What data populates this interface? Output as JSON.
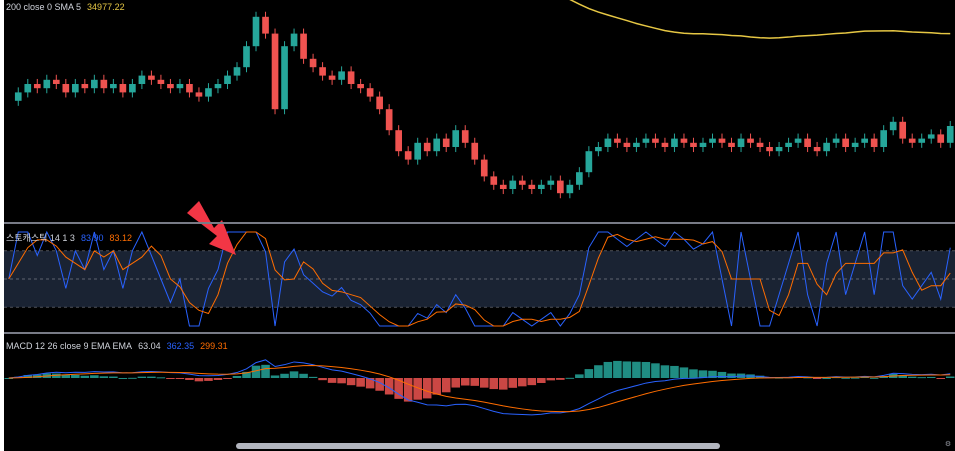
{
  "price_pane": {
    "legend": {
      "label": "200 close 0 SMA 5",
      "value": "34977.22"
    },
    "colors": {
      "up": "#26a69a",
      "down": "#ef5350",
      "sma": "#e6c744"
    }
  },
  "stoch_pane": {
    "legend": {
      "label": "스토캐스틱 14 1 3",
      "k": "83.90",
      "d": "83.12"
    },
    "colors": {
      "k": "#2962ff",
      "d": "#ff6d00",
      "band": "#1a2333"
    }
  },
  "macd_pane": {
    "legend": {
      "label": "MACD 12 26 close 9 EMA EMA",
      "hist": "63.04",
      "macd": "362.35",
      "signal": "299.31"
    },
    "colors": {
      "macd": "#2962ff",
      "signal": "#ff6d00",
      "hist_up": "#26a69a",
      "hist_down": "#ef5350"
    }
  },
  "annotation": {
    "type": "arrow",
    "color": "#f23645"
  },
  "icons": {
    "corner": "settings-icon"
  },
  "chart_data": {
    "type": "candlestick",
    "n_bars": 100,
    "series": [
      {
        "name": "close",
        "values": [
          42,
          44,
          46,
          45,
          47,
          46,
          44,
          46,
          45,
          47,
          45,
          46,
          44,
          46,
          48,
          47,
          46,
          45,
          46,
          44,
          43,
          45,
          46,
          48,
          50,
          55,
          62,
          58,
          40,
          55,
          58,
          52,
          50,
          48,
          47,
          49,
          46,
          45,
          43,
          40,
          35,
          30,
          28,
          32,
          30,
          33,
          31,
          35,
          32,
          28,
          24,
          22,
          21,
          23,
          22,
          21,
          22,
          23,
          20,
          22,
          25,
          30,
          31,
          33,
          32,
          31,
          32,
          33,
          32,
          31,
          33,
          32,
          31,
          32,
          33,
          32,
          31,
          33,
          32,
          31,
          30,
          31,
          32,
          33,
          31,
          30,
          32,
          33,
          31,
          32,
          33,
          31,
          35,
          37,
          33,
          32,
          33,
          34,
          32,
          36
        ]
      }
    ]
  }
}
